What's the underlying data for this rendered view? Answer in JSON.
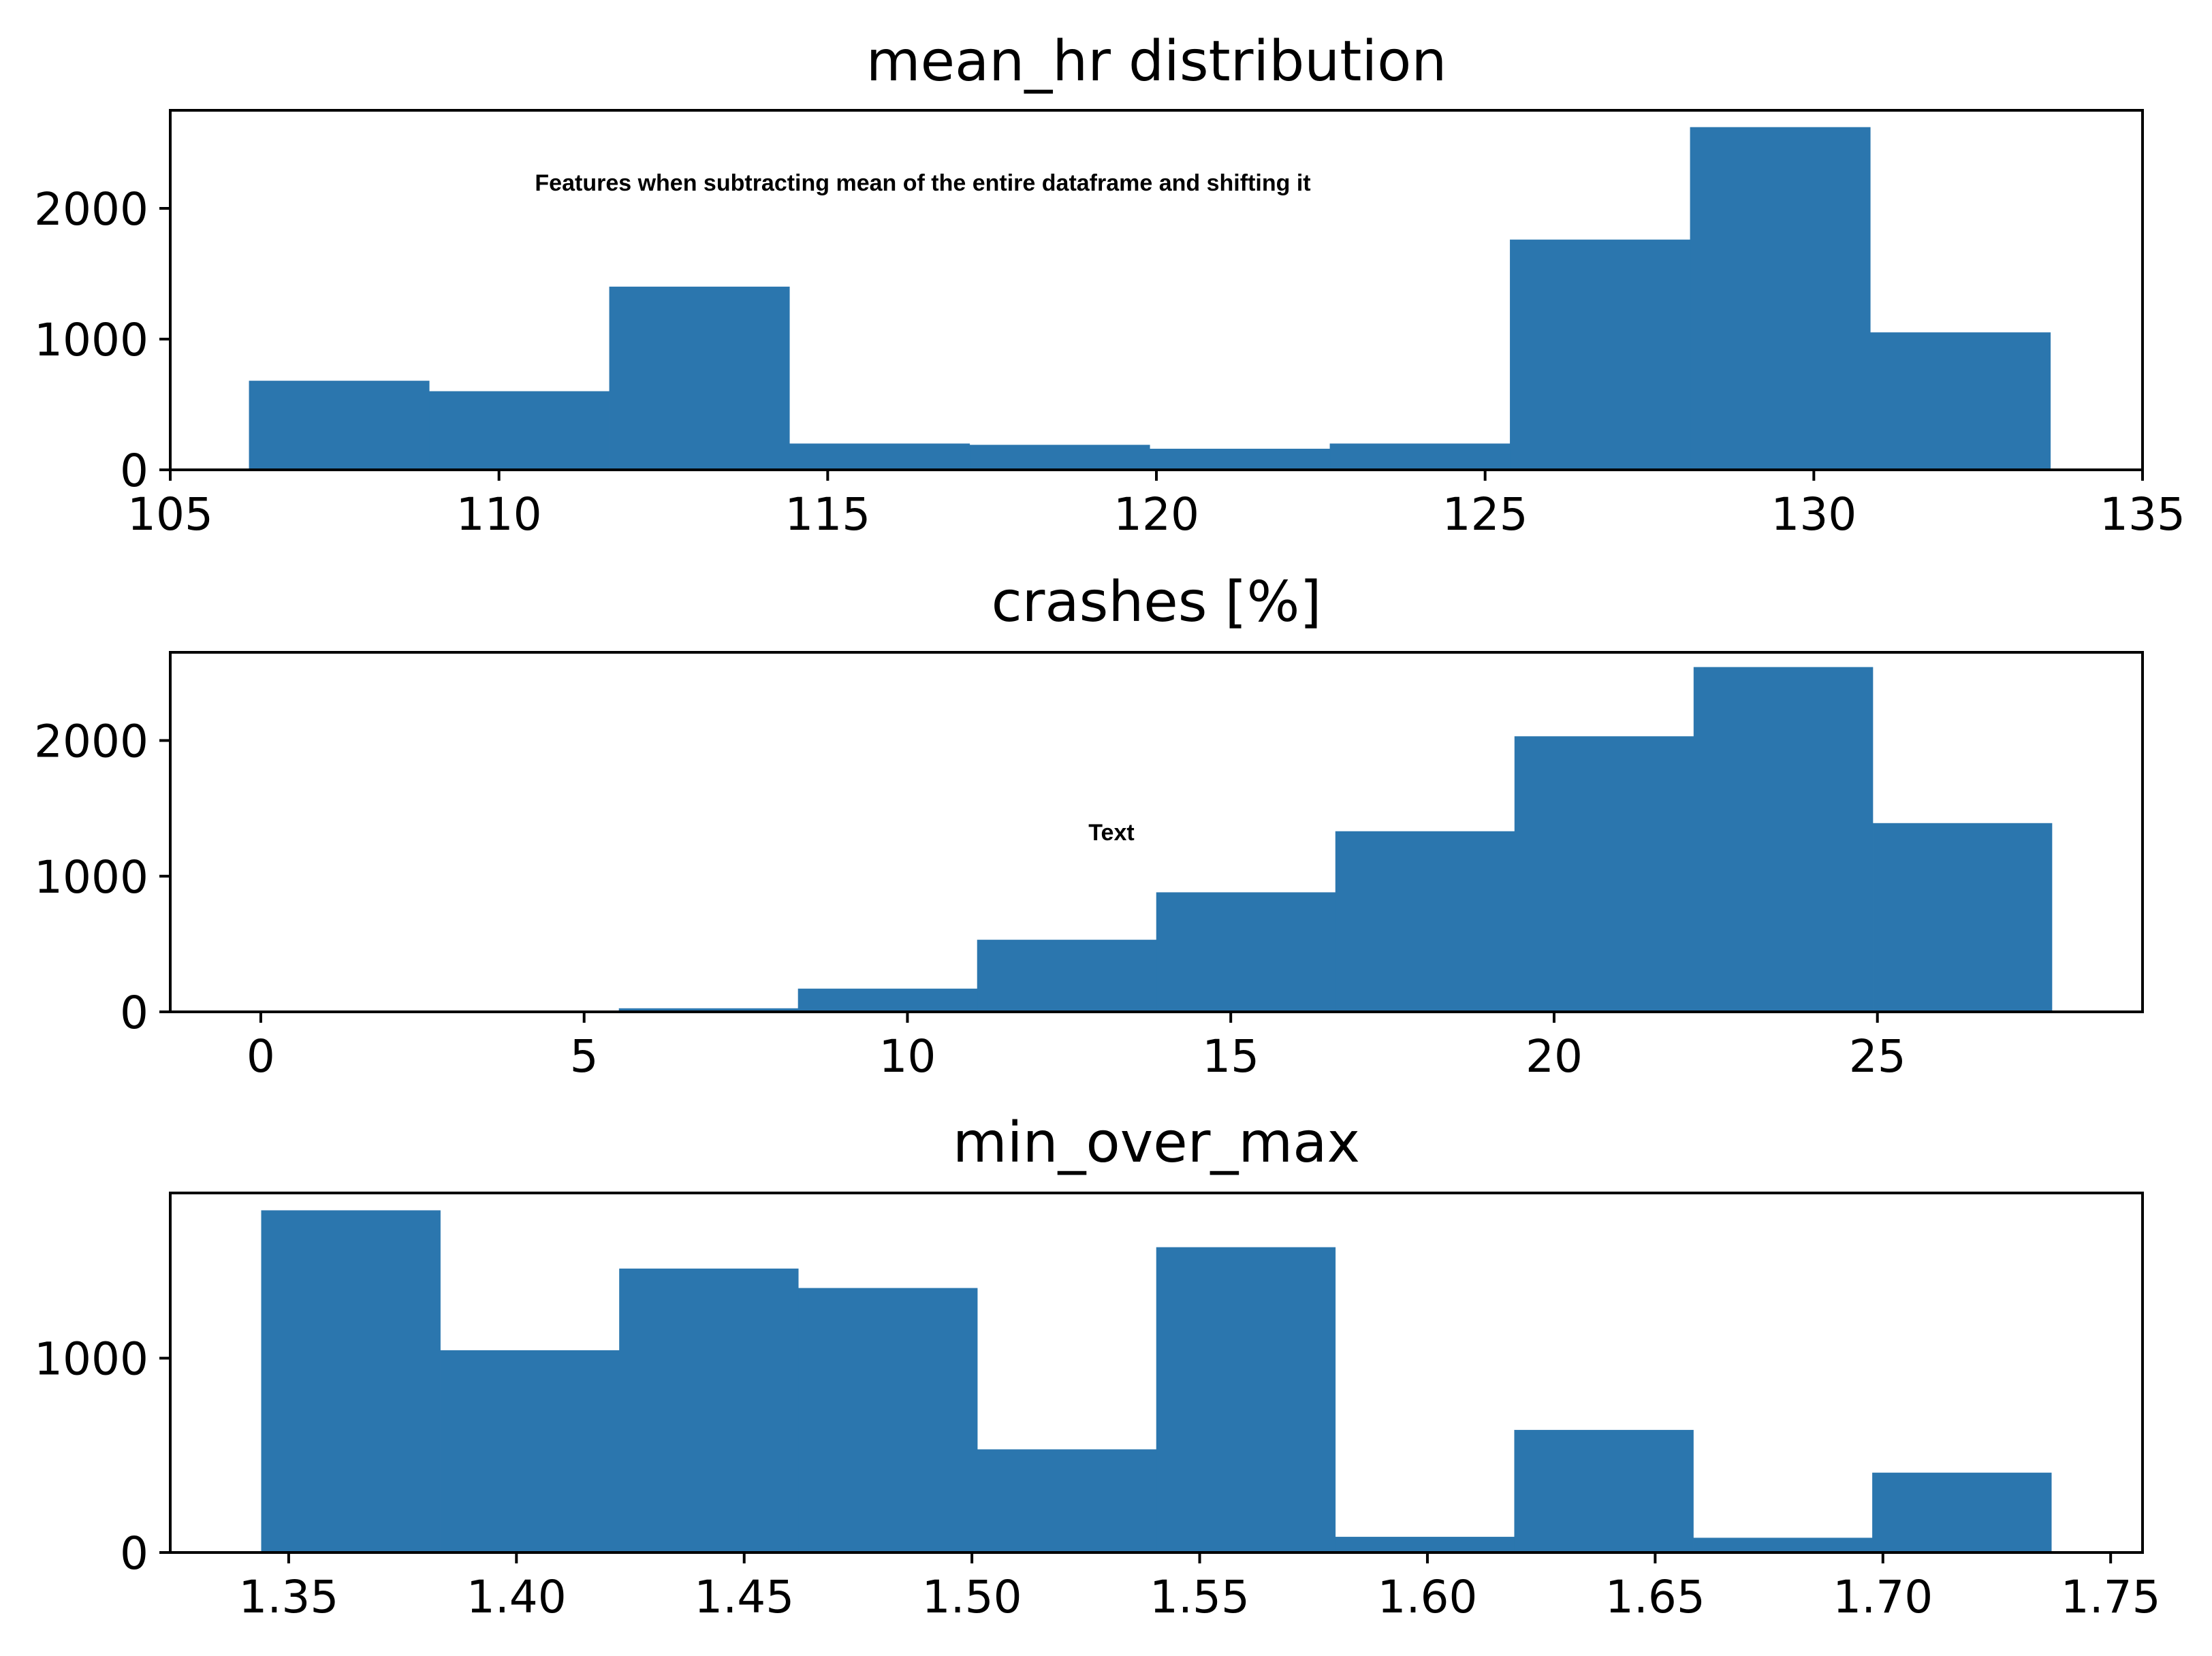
{
  "chart_data": [
    {
      "type": "bar",
      "title": "mean_hr distribution",
      "xlabel": "",
      "ylabel": "",
      "annotation": "Features when subtracting mean of the entire dataframe and shifting it",
      "bin_edges": [
        106.2,
        108.94,
        111.68,
        114.42,
        117.16,
        119.9,
        122.64,
        125.38,
        128.12,
        130.86,
        133.6
      ],
      "values": [
        680,
        600,
        1400,
        200,
        190,
        160,
        200,
        1760,
        2620,
        1050
      ],
      "xlim": [
        105,
        135
      ],
      "ylim": [
        0,
        2750
      ],
      "xticks": [
        105,
        110,
        115,
        120,
        125,
        130,
        135
      ],
      "xtick_labels": [
        "105",
        "110",
        "115",
        "120",
        "125",
        "130",
        "135"
      ],
      "yticks": [
        0,
        1000,
        2000
      ],
      "ytick_labels": [
        "0",
        "1000",
        "2000"
      ],
      "grid": false,
      "color": "#2b76ae"
    },
    {
      "type": "bar",
      "title": "crashes [%]",
      "xlabel": "",
      "ylabel": "",
      "annotation": "Text",
      "bin_edges": [
        0,
        2.77,
        5.54,
        8.31,
        11.08,
        13.85,
        16.62,
        19.39,
        22.16,
        24.93,
        27.7
      ],
      "values": [
        0,
        0,
        25,
        170,
        530,
        880,
        1330,
        2030,
        2540,
        1390
      ],
      "xlim": [
        -1.4,
        29.1
      ],
      "ylim": [
        0,
        2650
      ],
      "xticks": [
        0,
        5,
        10,
        15,
        20,
        25
      ],
      "xtick_labels": [
        "0",
        "5",
        "10",
        "15",
        "20",
        "25"
      ],
      "yticks": [
        0,
        1000,
        2000
      ],
      "ytick_labels": [
        "0",
        "1000",
        "2000"
      ],
      "grid": false,
      "color": "#2b76ae"
    },
    {
      "type": "bar",
      "title": "min_over_max",
      "xlabel": "",
      "ylabel": "",
      "annotation": "",
      "bin_edges": [
        1.344,
        1.3833,
        1.4226,
        1.4619,
        1.5012,
        1.5405,
        1.5798,
        1.6191,
        1.6584,
        1.6977,
        1.737
      ],
      "values": [
        1760,
        1040,
        1460,
        1360,
        530,
        1570,
        80,
        630,
        75,
        410
      ],
      "xlim": [
        1.324,
        1.757
      ],
      "ylim": [
        0,
        1850
      ],
      "xticks": [
        1.35,
        1.4,
        1.45,
        1.5,
        1.55,
        1.6,
        1.65,
        1.7,
        1.75
      ],
      "xtick_labels": [
        "1.35",
        "1.40",
        "1.45",
        "1.50",
        "1.55",
        "1.60",
        "1.65",
        "1.70",
        "1.75"
      ],
      "yticks": [
        0,
        1000
      ],
      "ytick_labels": [
        "0",
        "1000"
      ],
      "grid": false,
      "color": "#2b76ae"
    }
  ]
}
